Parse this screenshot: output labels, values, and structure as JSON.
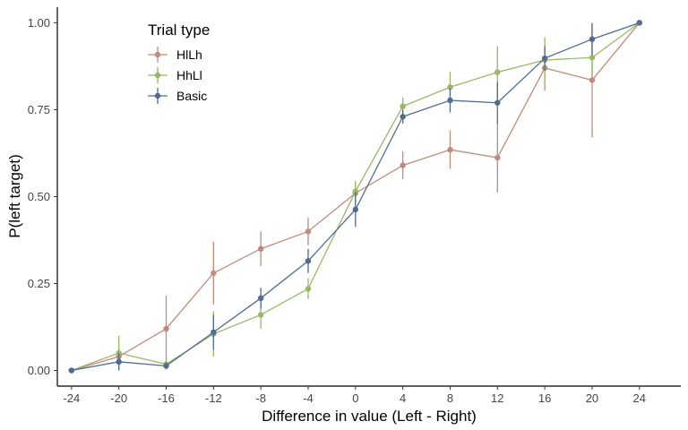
{
  "chart_data": {
    "type": "line",
    "xlabel": "Difference in value (Left - Right)",
    "ylabel": "P(left target)",
    "x": [
      -24,
      -20,
      -16,
      -12,
      -8,
      -4,
      0,
      4,
      8,
      12,
      16,
      20,
      24
    ],
    "xticks": [
      -24,
      -20,
      -16,
      -12,
      -8,
      -4,
      0,
      4,
      8,
      12,
      16,
      20,
      24
    ],
    "yticks": [
      "0.00",
      "0.25",
      "0.50",
      "0.75",
      "1.00"
    ],
    "xlim": [
      -25.2,
      27.5
    ],
    "ylim": [
      -0.045,
      1.045
    ],
    "grid": false,
    "legend": {
      "title": "Trial type",
      "position": "top-left"
    },
    "series": [
      {
        "name": "HlLh",
        "color": "#c08a7d",
        "values": [
          0.0,
          0.04,
          0.12,
          0.28,
          0.35,
          0.4,
          0.51,
          0.59,
          0.635,
          0.612,
          0.87,
          0.835,
          1.0
        ],
        "err": [
          0.0,
          0.03,
          0.095,
          0.09,
          0.05,
          0.04,
          0.03,
          0.04,
          0.055,
          0.1,
          0.065,
          0.165,
          0.0
        ]
      },
      {
        "name": "HhLl",
        "color": "#9ab765",
        "values": [
          0.0,
          0.05,
          0.018,
          0.105,
          0.16,
          0.235,
          0.515,
          0.76,
          0.815,
          0.858,
          0.893,
          0.9,
          1.0
        ],
        "err": [
          0.0,
          0.05,
          0.01,
          0.065,
          0.04,
          0.03,
          0.03,
          0.025,
          0.045,
          0.075,
          0.065,
          0.05,
          0.0
        ]
      },
      {
        "name": "Basic",
        "color": "#516b91",
        "values": [
          0.0,
          0.025,
          0.013,
          0.11,
          0.208,
          0.315,
          0.463,
          0.73,
          0.777,
          0.77,
          0.898,
          0.953,
          1.0
        ],
        "err": [
          0.0,
          0.025,
          0.01,
          0.05,
          0.03,
          0.035,
          0.05,
          0.02,
          0.035,
          0.06,
          0.035,
          0.045,
          0.0
        ]
      }
    ]
  }
}
